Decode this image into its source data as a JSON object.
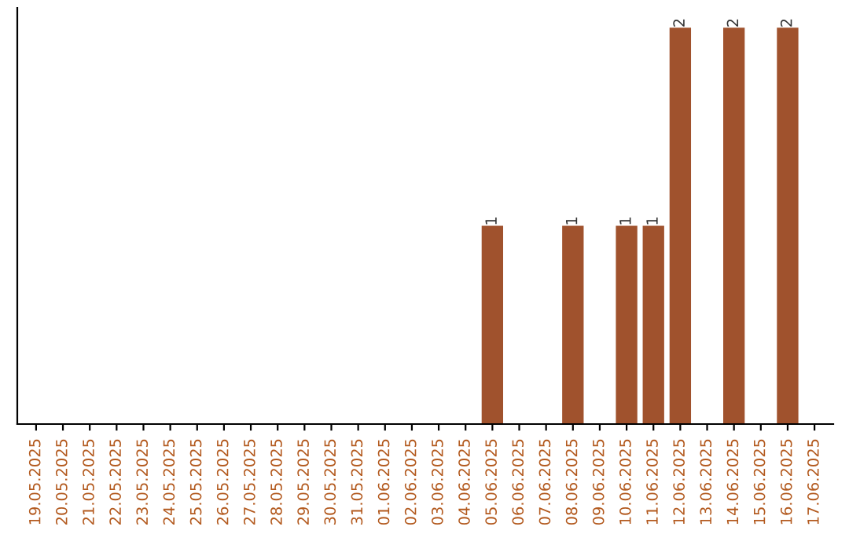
{
  "chart_data": {
    "type": "bar",
    "categories": [
      "19.05.2025",
      "20.05.2025",
      "21.05.2025",
      "22.05.2025",
      "23.05.2025",
      "24.05.2025",
      "25.05.2025",
      "26.05.2025",
      "27.05.2025",
      "28.05.2025",
      "29.05.2025",
      "30.05.2025",
      "31.05.2025",
      "01.06.2025",
      "02.06.2025",
      "03.06.2025",
      "04.06.2025",
      "05.06.2025",
      "06.06.2025",
      "07.06.2025",
      "08.06.2025",
      "09.06.2025",
      "10.06.2025",
      "11.06.2025",
      "12.06.2025",
      "13.06.2025",
      "14.06.2025",
      "15.06.2025",
      "16.06.2025",
      "17.06.2025"
    ],
    "values": [
      null,
      null,
      null,
      null,
      null,
      null,
      null,
      null,
      null,
      null,
      null,
      null,
      null,
      null,
      null,
      null,
      null,
      1,
      null,
      null,
      1,
      null,
      1,
      1,
      2,
      null,
      2,
      null,
      2,
      null
    ],
    "color": "#a0522d",
    "data_labels": true,
    "grid": false,
    "legend": false
  }
}
